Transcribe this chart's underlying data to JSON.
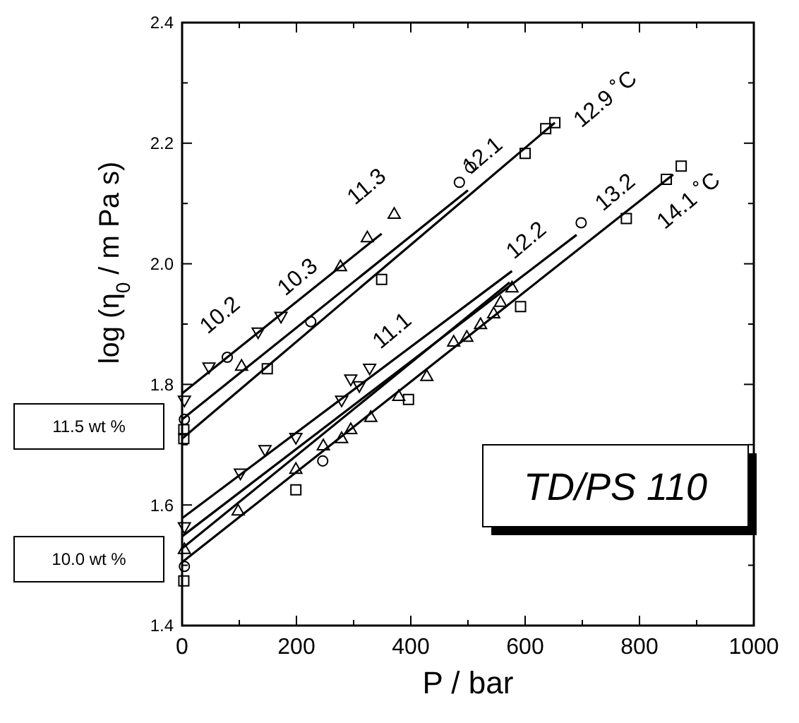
{
  "chart_data": {
    "type": "scatter",
    "xlabel": "P / bar",
    "ylabel": "log (η$_{0}$ / m Pa s)",
    "xlim": [
      0,
      1000
    ],
    "ylim": [
      1.4,
      2.4
    ],
    "xticks": [
      0,
      {
        "value": 100,
        "label": null
      },
      200,
      {
        "value": 300,
        "label": null
      },
      400,
      {
        "value": 500,
        "label": null
      },
      600,
      {
        "value": 700,
        "label": null
      },
      800,
      {
        "value": 900,
        "label": null
      },
      1000
    ],
    "yticks": [
      {
        "value": 1.4,
        "label": "1.4"
      },
      {
        "value": 1.5,
        "label": null
      },
      {
        "value": 1.6,
        "label": "1.6"
      },
      {
        "value": 1.7,
        "label": null
      },
      {
        "value": 1.8,
        "label": "1.8"
      },
      {
        "value": 1.9,
        "label": null
      },
      {
        "value": 2.0,
        "label": "2.0"
      },
      {
        "value": 2.1,
        "label": null
      },
      {
        "value": 2.2,
        "label": "2.2"
      },
      {
        "value": 2.3,
        "label": null
      },
      {
        "value": 2.4,
        "label": "2.4"
      }
    ],
    "grid": false,
    "series": [
      {
        "marker": "triangle_down",
        "color": "#000000",
        "x": [
          4,
          47,
          133,
          173
        ],
        "values": [
          1.773,
          1.828,
          1.886,
          1.912
        ]
      },
      {
        "type": "scatter",
        "marker": "triangle",
        "color": "#000000",
        "x": [
          104,
          277,
          324,
          371
        ],
        "values": [
          1.831,
          1.996,
          2.044,
          2.083
        ]
      },
      {
        "type": "scatter",
        "marker": "circle",
        "color": "#000000",
        "x": [
          4,
          79,
          225,
          485,
          505
        ],
        "values": [
          1.742,
          1.845,
          1.904,
          2.135,
          2.16
        ]
      },
      {
        "type": "scatter",
        "marker": "square",
        "color": "#000000",
        "x": [
          3,
          3,
          149,
          349,
          600,
          636,
          652
        ],
        "values": [
          1.71,
          1.725,
          1.826,
          1.974,
          2.183,
          2.224,
          2.234
        ]
      },
      {
        "type": "scatter",
        "marker": "triangle_down",
        "color": "#000000",
        "x": [
          4,
          102,
          145,
          199,
          279,
          295,
          310,
          328
        ],
        "values": [
          1.563,
          1.652,
          1.691,
          1.711,
          1.773,
          1.808,
          1.797,
          1.826
        ]
      },
      {
        "type": "scatter",
        "marker": "triangle",
        "color": "#000000",
        "x": [
          4,
          98,
          199,
          247,
          279,
          295,
          330,
          379,
          428,
          475,
          498,
          522,
          545,
          557,
          577
        ],
        "values": [
          1.527,
          1.591,
          1.66,
          1.699,
          1.711,
          1.726,
          1.746,
          1.781,
          1.814,
          1.871,
          1.879,
          1.9,
          1.918,
          1.937,
          1.961
        ]
      },
      {
        "type": "scatter",
        "marker": "circle",
        "color": "#000000",
        "x": [
          4,
          246,
          698
        ],
        "values": [
          1.498,
          1.673,
          2.068
        ]
      },
      {
        "type": "scatter",
        "marker": "square",
        "color": "#000000",
        "x": [
          3,
          199,
          396,
          592,
          777,
          847,
          873
        ],
        "values": [
          1.474,
          1.625,
          1.775,
          1.929,
          2.075,
          2.14,
          2.162
        ]
      },
      {
        "type": "line",
        "marker": "none",
        "color": "#000000",
        "x": [
          0,
          349
        ],
        "values": [
          1.785,
          2.05
        ]
      },
      {
        "type": "line",
        "marker": "none",
        "color": "#000000",
        "x": [
          0,
          500
        ],
        "values": [
          1.742,
          2.122
        ]
      },
      {
        "type": "line",
        "marker": "none",
        "color": "#000000",
        "x": [
          0,
          652
        ],
        "values": [
          1.71,
          2.234
        ]
      },
      {
        "type": "line",
        "marker": "none",
        "color": "#000000",
        "x": [
          0,
          577
        ],
        "values": [
          1.578,
          1.988
        ]
      },
      {
        "type": "line",
        "marker": "none",
        "color": "#000000",
        "x": [
          0,
          690
        ],
        "values": [
          1.548,
          2.048
        ]
      },
      {
        "type": "line",
        "marker": "none",
        "color": "#000000",
        "x": [
          0,
          573
        ],
        "values": [
          1.528,
          1.969
        ]
      },
      {
        "type": "line",
        "marker": "none",
        "color": "#000000",
        "x": [
          0,
          859
        ],
        "values": [
          1.505,
          2.148
        ]
      }
    ],
    "annotations": [
      "10.2",
      "10.3",
      "11.3",
      "12.1",
      "12.9 ˚C",
      "11.1",
      "12.2",
      "13.2",
      "14.1 ˚C",
      "11.5 wt %",
      "10.0 wt %",
      "TD/PS 110"
    ]
  }
}
